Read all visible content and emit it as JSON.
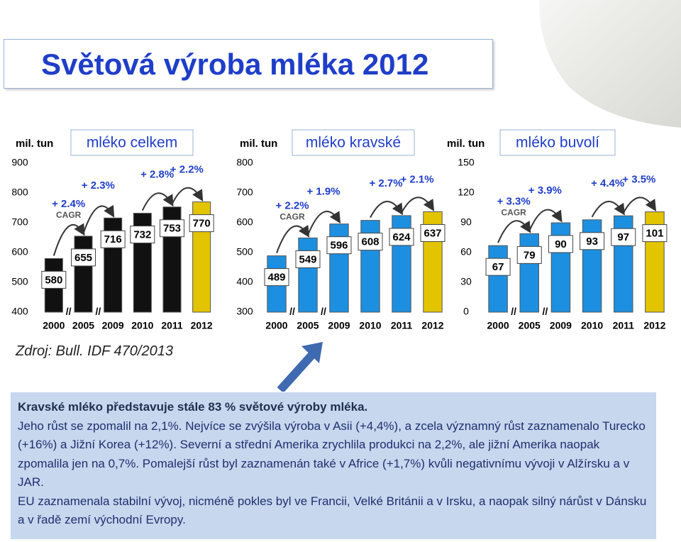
{
  "title": "Světová výroba mléka 2012",
  "chart_data": [
    {
      "type": "bar",
      "unit": "mil. tun",
      "title": "mléko celkem",
      "categories": [
        "2000",
        "2005",
        "2009",
        "2010",
        "2011",
        "2012"
      ],
      "values": [
        580,
        655,
        716,
        732,
        753,
        770
      ],
      "colors": [
        "#111111",
        "#111111",
        "#111111",
        "#111111",
        "#111111",
        "#e3c400"
      ],
      "ylim": [
        400,
        900
      ],
      "yticks": [
        400,
        500,
        600,
        700,
        800,
        900
      ],
      "annotations": [
        "+ 2.4%",
        "+ 2.3%",
        "+ 2.8%",
        "+ 2.2%"
      ],
      "annotation_note": "CAGR",
      "break_symbol": "//"
    },
    {
      "type": "bar",
      "unit": "mil. tun",
      "title": "mléko kravské",
      "categories": [
        "2000",
        "2005",
        "2009",
        "2010",
        "2011",
        "2012"
      ],
      "values": [
        489,
        549,
        596,
        608,
        624,
        637
      ],
      "colors": [
        "#1d8fe0",
        "#1d8fe0",
        "#1d8fe0",
        "#1d8fe0",
        "#1d8fe0",
        "#e3c400"
      ],
      "ylim": [
        300,
        800
      ],
      "yticks": [
        300,
        400,
        500,
        600,
        700,
        800
      ],
      "annotations": [
        "+ 2.2%",
        "+ 1.9%",
        "+ 2.7%",
        "+ 2.1%"
      ],
      "annotation_note": "CAGR",
      "break_symbol": "//"
    },
    {
      "type": "bar",
      "unit": "mil. tun",
      "title": "mléko buvolí",
      "categories": [
        "2000",
        "2005",
        "2009",
        "2010",
        "2011",
        "2012"
      ],
      "values": [
        67,
        79,
        90,
        93,
        97,
        101
      ],
      "colors": [
        "#1d8fe0",
        "#1d8fe0",
        "#1d8fe0",
        "#1d8fe0",
        "#1d8fe0",
        "#e3c400"
      ],
      "ylim": [
        0,
        150
      ],
      "yticks": [
        0,
        30,
        60,
        90,
        120,
        150
      ],
      "annotations": [
        "+ 3.3%",
        "+ 3.9%",
        "+ 4.4%",
        "+ 3.5%"
      ],
      "annotation_note": "CAGR",
      "break_symbol": "//"
    }
  ],
  "source": "Zdroj: Bull. IDF 470/2013",
  "text": {
    "lead": "Kravské mléko představuje stále 83 % světové výroby mléka.",
    "paragraphs": [
      "Jeho růst se zpomalil na 2,1%. Nejvíce se zvýšila výroba v Asii (+4,4%), a zcela významný růst zaznamenalo Turecko (+16%) a Jižní Korea (+12%). Severní a střední Amerika zrychlila produkci na 2,2%, ale jižní Amerika naopak zpomalila jen na 0,7%. Pomalejší růst byl zaznamenán také v Africe (+1,7%) kvůli negativnímu vývoji v Alžírsku a v JAR.",
      "EU zaznamenala stabilní vývoj, nicméně pokles byl ve Francii, Velké Británii a v Irsku, a naopak silný nárůst v Dánsku a v řadě zemí východní Evropy."
    ]
  }
}
